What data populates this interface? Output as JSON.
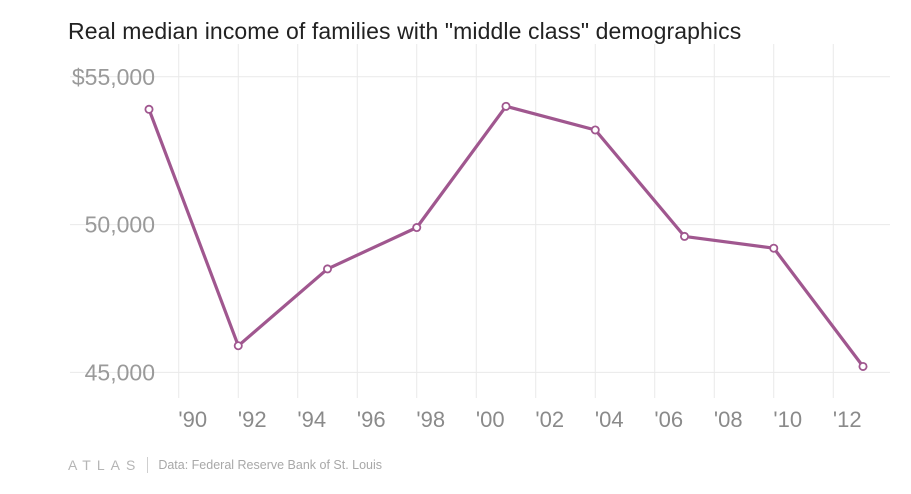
{
  "title": "Real median income of families with \"middle class\" demographics",
  "footer": {
    "logo": "ATLAS",
    "source": "Data: Federal Reserve Bank of St. Louis"
  },
  "colors": {
    "line": "#a0578f",
    "grid": "#e9e9e9",
    "tick_text": "#9a9a9a"
  },
  "chart_data": {
    "type": "line",
    "title": "Real median income of families with \"middle class\" demographics",
    "xlabel": "",
    "ylabel": "",
    "x_ticks": [
      "'90",
      "'92",
      "'94",
      "'96",
      "'98",
      "'00",
      "'02",
      "'04",
      "'06",
      "'08",
      "'10",
      "'12"
    ],
    "x_tick_values": [
      1990,
      1992,
      1994,
      1996,
      1998,
      2000,
      2002,
      2004,
      2006,
      2008,
      2010,
      2012
    ],
    "y_ticks": [
      "$55,000",
      "50,000",
      "45,000"
    ],
    "y_tick_values": [
      55000,
      50000,
      45000
    ],
    "xlim": [
      1989,
      2013
    ],
    "ylim": [
      44200,
      55500
    ],
    "grid": true,
    "series": [
      {
        "x": [
          1989,
          1992,
          1995,
          1998,
          2001,
          2004,
          2007,
          2010,
          2013
        ],
        "values": [
          53900,
          45900,
          48500,
          49900,
          54000,
          53200,
          49600,
          49200,
          45200
        ]
      }
    ]
  }
}
